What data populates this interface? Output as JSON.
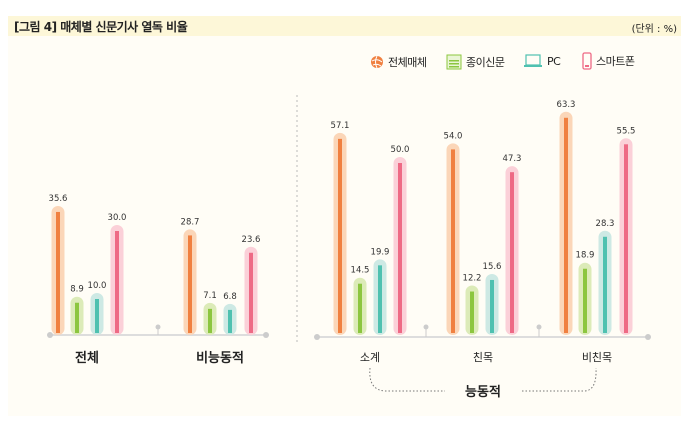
{
  "header": {
    "title": "[그림 4]  매체별 신문기사 열독 비율",
    "unit": "(단위 : %)"
  },
  "chart_data": {
    "type": "bar",
    "title": "[그림 4]  매체별 신문기사 열독 비율",
    "unit": "(단위 : %)",
    "categories": [
      "전체",
      "비능동적",
      "소계",
      "친목",
      "비친목"
    ],
    "group_label": "능동적",
    "series": [
      {
        "name": "전체매체",
        "color": "#f08040",
        "halo": "#fbd6b8",
        "values": [
          35.6,
          28.7,
          57.1,
          54.0,
          63.3
        ]
      },
      {
        "name": "종이신문",
        "color": "#8cc63f",
        "halo": "#dcebb8",
        "values": [
          8.9,
          7.1,
          14.5,
          12.2,
          18.9
        ]
      },
      {
        "name": "PC",
        "color": "#4fc1b0",
        "halo": "#cde9e4",
        "values": [
          10.0,
          6.8,
          19.9,
          15.6,
          28.3
        ]
      },
      {
        "name": "스마트폰",
        "color": "#ee6a85",
        "halo": "#fbd0d8",
        "values": [
          30.0,
          23.6,
          50.0,
          47.3,
          55.5
        ]
      }
    ],
    "labels": [
      [
        "35.6",
        "28.7",
        "57.1",
        "54.0",
        "63.3"
      ],
      [
        "8.9",
        "7.1",
        "14.5",
        "12.2",
        "18.9"
      ],
      [
        "10.0",
        "6.8",
        "19.9",
        "15.6",
        "28.3"
      ],
      [
        "30.0",
        "23.6",
        "50.0",
        "47.3",
        "55.5"
      ]
    ],
    "ylim": [
      0,
      70
    ],
    "legend": "top-right"
  }
}
